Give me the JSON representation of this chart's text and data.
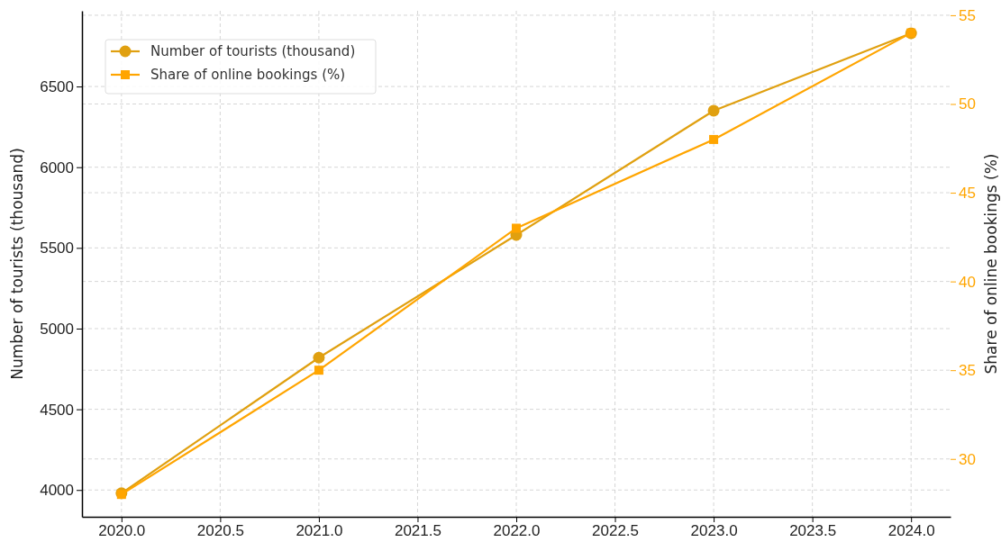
{
  "chart_data": {
    "type": "line",
    "x": [
      2020,
      2021,
      2022,
      2023,
      2024
    ],
    "series": [
      {
        "name": "Number of tourists (thousand)",
        "color": "#e0a010",
        "values": [
          3980,
          4820,
          5580,
          6350,
          6830
        ],
        "marker": "circle"
      },
      {
        "name": "Share of online bookings (%)",
        "color": "#ffa500",
        "values": [
          28,
          35,
          43,
          48,
          54
        ],
        "axis": "y2",
        "marker": "square"
      }
    ],
    "xlim": [
      2019.8,
      2024.2
    ],
    "xticks": [
      {
        "value": 2020,
        "label": "2020.0"
      },
      {
        "value": 2020.5,
        "label": "2020.5"
      },
      {
        "value": 2021,
        "label": "2021.0"
      },
      {
        "value": 2021.5,
        "label": "2021.5"
      },
      {
        "value": 2022,
        "label": "2022.0"
      },
      {
        "value": 2022.5,
        "label": "2022.5"
      },
      {
        "value": 2023,
        "label": "2023.0"
      },
      {
        "value": 2023.5,
        "label": "2023.5"
      },
      {
        "value": 2024,
        "label": "2024.0"
      }
    ],
    "ylim": [
      3834,
      6969
    ],
    "yticks": [
      4000,
      4500,
      5000,
      5500,
      6000,
      6500
    ],
    "y2lim": [
      26.74,
      55.25
    ],
    "y2ticks": [
      30,
      35,
      40,
      45,
      50,
      55
    ],
    "ylabel": "Number of tourists (thousand)",
    "y2label": "Share of online bookings (%)",
    "grid": true,
    "legend": "top left",
    "line_style": "solid"
  }
}
